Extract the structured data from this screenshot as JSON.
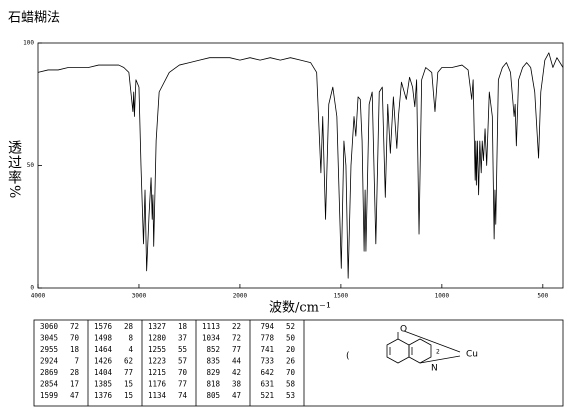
{
  "chart_data": {
    "type": "line",
    "title": "石蜡糊法",
    "x_label": "波数/cm⁻¹",
    "y_label": "透过率%",
    "xlim": [
      4000,
      400
    ],
    "xticks": [
      4000,
      3000,
      2000,
      1500,
      1000,
      500
    ],
    "ylim": [
      0,
      100
    ],
    "yticks": [
      100,
      50,
      0
    ],
    "grid": false,
    "color": "#000000",
    "x": [
      4000,
      3900,
      3800,
      3700,
      3600,
      3500,
      3400,
      3300,
      3200,
      3150,
      3100,
      3060,
      3052,
      3045,
      3030,
      3000,
      2980,
      2955,
      2940,
      2924,
      2900,
      2880,
      2869,
      2862,
      2854,
      2830,
      2800,
      2700,
      2600,
      2500,
      2400,
      2300,
      2200,
      2100,
      2000,
      1950,
      1900,
      1850,
      1800,
      1750,
      1700,
      1650,
      1620,
      1599,
      1590,
      1576,
      1560,
      1540,
      1520,
      1498,
      1485,
      1475,
      1464,
      1450,
      1435,
      1426,
      1415,
      1404,
      1395,
      1385,
      1380,
      1376,
      1360,
      1345,
      1327,
      1310,
      1295,
      1280,
      1268,
      1255,
      1240,
      1223,
      1218,
      1215,
      1200,
      1176,
      1160,
      1145,
      1134,
      1125,
      1113,
      1100,
      1080,
      1050,
      1034,
      1020,
      1000,
      950,
      900,
      870,
      852,
      845,
      835,
      832,
      829,
      824,
      818,
      812,
      805,
      800,
      794,
      786,
      778,
      765,
      750,
      741,
      737,
      733,
      720,
      700,
      680,
      660,
      642,
      637,
      631,
      620,
      600,
      580,
      560,
      540,
      521,
      510,
      490,
      470,
      450,
      430,
      400
    ],
    "values": [
      88,
      89,
      89,
      90,
      90,
      90,
      91,
      91,
      91,
      90,
      88,
      72,
      80,
      70,
      85,
      82,
      50,
      18,
      40,
      7,
      30,
      45,
      28,
      38,
      17,
      60,
      80,
      88,
      91,
      92,
      93,
      94,
      94,
      94,
      93,
      94,
      93,
      94,
      93,
      94,
      93,
      92,
      88,
      47,
      70,
      28,
      75,
      82,
      70,
      8,
      60,
      50,
      4,
      50,
      70,
      62,
      78,
      77,
      60,
      15,
      40,
      15,
      75,
      80,
      18,
      80,
      82,
      37,
      75,
      55,
      78,
      57,
      65,
      70,
      84,
      77,
      86,
      82,
      74,
      85,
      22,
      85,
      90,
      88,
      72,
      88,
      90,
      90,
      91,
      89,
      77,
      85,
      44,
      60,
      42,
      60,
      38,
      60,
      47,
      60,
      52,
      65,
      50,
      80,
      70,
      20,
      40,
      26,
      85,
      90,
      92,
      88,
      70,
      75,
      58,
      85,
      90,
      92,
      90,
      80,
      53,
      80,
      93,
      96,
      90,
      94,
      90
    ]
  },
  "peak_table": {
    "columns": [
      [
        [
          "3060",
          "72"
        ],
        [
          "3045",
          "70"
        ],
        [
          "2955",
          "18"
        ],
        [
          "2924",
          "7"
        ],
        [
          "2869",
          "28"
        ],
        [
          "2854",
          "17"
        ],
        [
          "1599",
          "47"
        ]
      ],
      [
        [
          "1576",
          "28"
        ],
        [
          "1498",
          "8"
        ],
        [
          "1464",
          "4"
        ],
        [
          "1426",
          "62"
        ],
        [
          "1404",
          "77"
        ],
        [
          "1385",
          "15"
        ],
        [
          "1376",
          "15"
        ]
      ],
      [
        [
          "1327",
          "18"
        ],
        [
          "1280",
          "37"
        ],
        [
          "1255",
          "55"
        ],
        [
          "1223",
          "57"
        ],
        [
          "1215",
          "70"
        ],
        [
          "1176",
          "77"
        ],
        [
          "1134",
          "74"
        ]
      ],
      [
        [
          "1113",
          "22"
        ],
        [
          "1034",
          "72"
        ],
        [
          "852",
          "77"
        ],
        [
          "835",
          "44"
        ],
        [
          "829",
          "42"
        ],
        [
          "818",
          "38"
        ],
        [
          "805",
          "47"
        ]
      ],
      [
        [
          "794",
          "52"
        ],
        [
          "778",
          "50"
        ],
        [
          "741",
          "20"
        ],
        [
          "733",
          "26"
        ],
        [
          "642",
          "70"
        ],
        [
          "631",
          "58"
        ],
        [
          "521",
          "53"
        ]
      ]
    ]
  },
  "structure": {
    "labels": [
      "(",
      "O",
      "N",
      "Cu",
      "2"
    ]
  }
}
